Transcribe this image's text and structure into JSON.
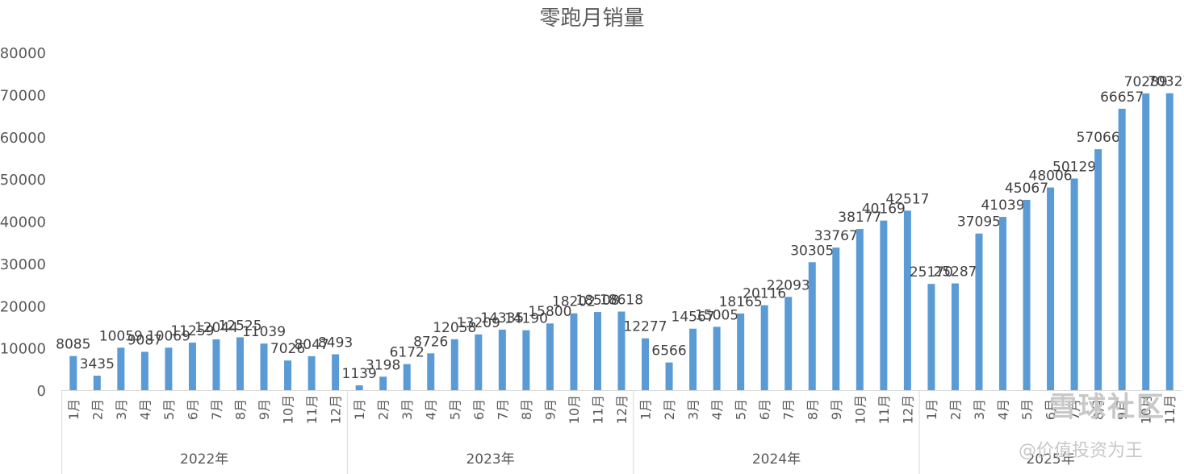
{
  "chart_data": {
    "type": "bar",
    "title": "零跑月销量",
    "xlabel": "",
    "ylabel": "",
    "ylim": [
      0,
      80000
    ],
    "yticks": [
      0,
      10000,
      20000,
      30000,
      40000,
      50000,
      60000,
      70000,
      80000
    ],
    "grid": false,
    "legend": "none",
    "bar_color": "#5B9BD5",
    "groups": [
      {
        "label": "2022年",
        "months": [
          "1月",
          "2月",
          "3月",
          "4月",
          "5月",
          "6月",
          "7月",
          "8月",
          "9月",
          "10月",
          "11月",
          "12月"
        ],
        "values": [
          8085,
          3435,
          10059,
          9087,
          10069,
          11259,
          12044,
          12525,
          11039,
          7026,
          8047,
          8493
        ]
      },
      {
        "label": "2023年",
        "months": [
          "1月",
          "2月",
          "3月",
          "4月",
          "5月",
          "6月",
          "7月",
          "8月",
          "9月",
          "10月",
          "11月",
          "12月"
        ],
        "values": [
          1139,
          3198,
          6172,
          8726,
          12058,
          13209,
          14335,
          14190,
          15800,
          18202,
          18508,
          18618
        ]
      },
      {
        "label": "2024年",
        "months": [
          "1月",
          "2月",
          "3月",
          "4月",
          "5月",
          "6月",
          "7月",
          "8月",
          "9月",
          "10月",
          "11月",
          "12月"
        ],
        "values": [
          12277,
          6566,
          14567,
          15005,
          18165,
          20116,
          22093,
          30305,
          33767,
          38177,
          40169,
          42517
        ]
      },
      {
        "label": "2025年",
        "months": [
          "1月",
          "2月",
          "3月",
          "4月",
          "5月",
          "6月",
          "7月",
          "8月",
          "9月",
          "10月",
          "11月"
        ],
        "values": [
          25170,
          25287,
          37095,
          41039,
          45067,
          48006,
          50129,
          57066,
          66657,
          70289,
          70327
        ]
      }
    ]
  },
  "watermark": {
    "logo": "雪球社区",
    "author": "@价值投资为王"
  }
}
